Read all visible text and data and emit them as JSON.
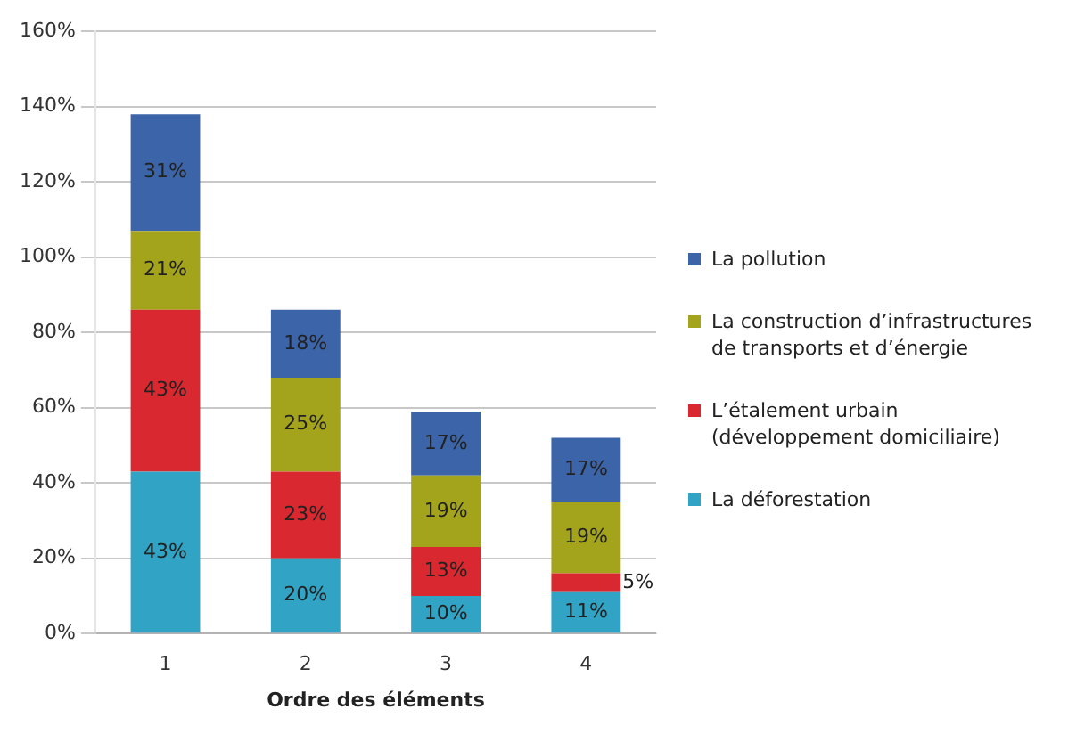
{
  "chart_data": {
    "type": "bar",
    "stacked": true,
    "xlabel": "Ordre des éléments",
    "categories": [
      "1",
      "2",
      "3",
      "4"
    ],
    "series": [
      {
        "name": "La déforestation",
        "color": "#31a3c4",
        "values": [
          43,
          20,
          10,
          11
        ],
        "value_labels": [
          "43%",
          "20%",
          "10%",
          "11%"
        ]
      },
      {
        "name": "L’étalement urbain (développement domiciliaire)",
        "color": "#d9282f",
        "values": [
          43,
          23,
          13,
          5
        ],
        "value_labels": [
          "43%",
          "23%",
          "13%",
          "5%"
        ]
      },
      {
        "name": "La construction d’infrastructures de transports et d’énergie",
        "color": "#a3a31c",
        "values": [
          21,
          25,
          19,
          19
        ],
        "value_labels": [
          "21%",
          "25%",
          "19%",
          "19%"
        ]
      },
      {
        "name": "La pollution",
        "color": "#3c64a8",
        "values": [
          31,
          18,
          17,
          17
        ],
        "value_labels": [
          "31%",
          "18%",
          "17%",
          "17%"
        ]
      }
    ],
    "ylim": [
      0,
      160
    ],
    "yticks": [
      {
        "value": 0,
        "label": "0%"
      },
      {
        "value": 20,
        "label": "20%"
      },
      {
        "value": 40,
        "label": "40%"
      },
      {
        "value": 60,
        "label": "60%"
      },
      {
        "value": 80,
        "label": "80%"
      },
      {
        "value": 100,
        "label": "100%"
      },
      {
        "value": 120,
        "label": "120%"
      },
      {
        "value": 140,
        "label": "140%"
      },
      {
        "value": 160,
        "label": "160%"
      }
    ],
    "grid": "y",
    "legend": "right"
  }
}
